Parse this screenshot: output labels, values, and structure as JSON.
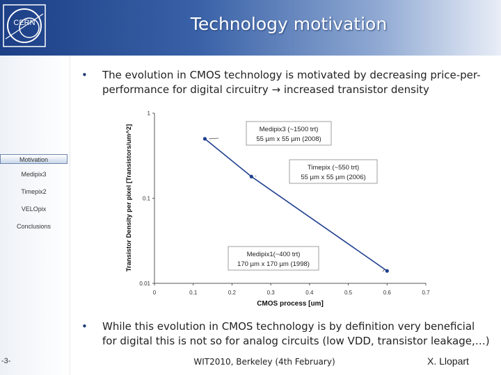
{
  "slide": {
    "title": "Technology motivation",
    "logo_text": "CERN",
    "bullet1": "The evolution in CMOS technology is motivated by decreasing price-per-performance for digital circuitry → increased transistor density",
    "bullet2": "While this evolution in CMOS technology is by definition very beneficial for digital this is not so for analog circuits (low VDD,  transistor leakage,…)",
    "bullet_symbol": "•"
  },
  "sidebar": {
    "items": [
      {
        "label": "Motivation",
        "active": true
      },
      {
        "label": "Medipix3",
        "active": false
      },
      {
        "label": "Timepix2",
        "active": false
      },
      {
        "label": "VELOpix",
        "active": false
      },
      {
        "label": "Conclusions",
        "active": false
      }
    ]
  },
  "footer": {
    "page": "-3-",
    "event": "WIT2010, Berkeley (4th February)",
    "author": "X. Llopart"
  },
  "chart_data": {
    "type": "scatter",
    "xlabel": "CMOS process [um]",
    "ylabel": "Transistor Density per pixel [Transistors/um^2]",
    "x_ticks": [
      "0",
      "0.1",
      "0.2",
      "0.3",
      "0.4",
      "0.5",
      "0.6",
      "0.7"
    ],
    "x_range": [
      0,
      0.7
    ],
    "y_ticks": [
      "0.01",
      "0.1",
      "1"
    ],
    "y_range": [
      0.01,
      1
    ],
    "y_scale": "log",
    "grid": false,
    "series": [
      {
        "points": [
          {
            "x": 0.13,
            "y": 0.5
          },
          {
            "x": 0.25,
            "y": 0.18
          },
          {
            "x": 0.6,
            "y": 0.014
          }
        ]
      }
    ],
    "annotations": [
      {
        "line1": "Medipix3 (~1500 trt)",
        "line2": "55 µm x 55 µm (2008)",
        "point": 0
      },
      {
        "line1": "Timepix (~550 trt)",
        "line2": "55 µm x 55 µm (2006)",
        "point": 1
      },
      {
        "line1": "Medipix1(~400 trt)",
        "line2": "170 µm x 170 µm (1998)",
        "point": 2
      }
    ],
    "colors": {
      "line": "#1f3f8f",
      "marker": "#1f3f8f"
    }
  }
}
